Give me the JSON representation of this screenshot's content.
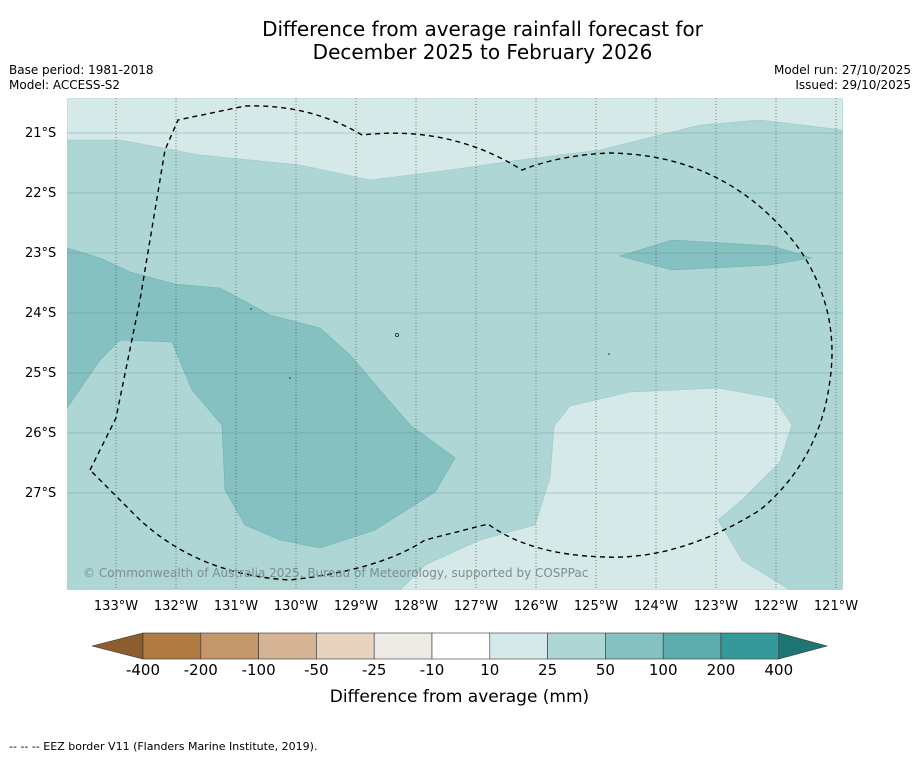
{
  "title_line1": "Difference from average rainfall forecast for",
  "title_line2": "December 2025 to February 2026",
  "meta": {
    "base_period": "Base period: 1981-2018",
    "model": "Model: ACCESS-S2",
    "model_run": "Model run: 27/10/2025",
    "issued": "Issued: 29/10/2025"
  },
  "lat_labels": [
    "21°S",
    "22°S",
    "23°S",
    "24°S",
    "25°S",
    "26°S",
    "27°S"
  ],
  "lon_labels": [
    "133°W",
    "132°W",
    "131°W",
    "130°W",
    "129°W",
    "128°W",
    "127°W",
    "126°W",
    "125°W",
    "124°W",
    "123°W",
    "122°W",
    "121°W"
  ],
  "colorbar": {
    "ticks": [
      "-400",
      "-200",
      "-100",
      "-50",
      "-25",
      "-10",
      "10",
      "25",
      "50",
      "100",
      "200",
      "400"
    ],
    "colors": [
      "#8c5e2e",
      "#b07b42",
      "#c4976b",
      "#d4b495",
      "#e6d3c0",
      "#eeebe7",
      "#ffffff",
      "#d4e9e8",
      "#add6d5",
      "#85c1c0",
      "#5eadad",
      "#349998",
      "#1f7574"
    ],
    "label": "Difference from average (mm)"
  },
  "copyright": "© Commonwealth of Australia 2025, Bureau of Meteorology, supported by COSPPac",
  "footnote": "--  --  -- EEZ border V11 (Flanders Marine Institute, 2019)."
}
